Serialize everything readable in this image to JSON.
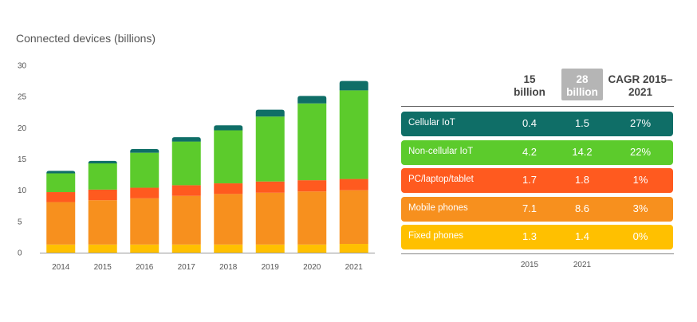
{
  "chart_data": [
    {
      "type": "bar",
      "stacked": true,
      "title": "Connected devices (billions)",
      "categories": [
        "2014",
        "2015",
        "2016",
        "2017",
        "2018",
        "2019",
        "2020",
        "2021"
      ],
      "ylim": [
        0,
        30
      ],
      "yticks": [
        0,
        5,
        10,
        15,
        20,
        25,
        30
      ],
      "grid": false,
      "series": [
        {
          "name": "Fixed phones",
          "color": "#ffc000",
          "values": [
            1.3,
            1.3,
            1.3,
            1.3,
            1.3,
            1.3,
            1.3,
            1.4
          ]
        },
        {
          "name": "Mobile phones",
          "color": "#f7901e",
          "values": [
            6.8,
            7.1,
            7.4,
            7.8,
            8.1,
            8.3,
            8.5,
            8.6
          ]
        },
        {
          "name": "PC/laptop/tablet",
          "color": "#ff5a1f",
          "values": [
            1.6,
            1.7,
            1.7,
            1.7,
            1.7,
            1.8,
            1.8,
            1.8
          ]
        },
        {
          "name": "Non-cellular IoT",
          "color": "#5ccb2c",
          "values": [
            3.0,
            4.2,
            5.6,
            7.0,
            8.5,
            10.4,
            12.3,
            14.2
          ]
        },
        {
          "name": "Cellular IoT",
          "color": "#0f6e67",
          "values": [
            0.4,
            0.4,
            0.6,
            0.7,
            0.8,
            1.1,
            1.2,
            1.5
          ]
        }
      ]
    },
    {
      "type": "table",
      "headers": {
        "c1": "15 billion",
        "c2": "28 billion",
        "c3": "CAGR 2015–2021"
      },
      "rows": [
        {
          "label": "Cellular IoT",
          "v2015": "0.4",
          "v2021": "1.5",
          "cagr": "27%",
          "color": "#0f6e67"
        },
        {
          "label": "Non-cellular IoT",
          "v2015": "4.2",
          "v2021": "14.2",
          "cagr": "22%",
          "color": "#5ccb2c"
        },
        {
          "label": "PC/laptop/tablet",
          "v2015": "1.7",
          "v2021": "1.8",
          "cagr": "1%",
          "color": "#ff5a1f"
        },
        {
          "label": "Mobile phones",
          "v2015": "7.1",
          "v2021": "8.6",
          "cagr": "3%",
          "color": "#f7901e"
        },
        {
          "label": "Fixed phones",
          "v2015": "1.3",
          "v2021": "1.4",
          "cagr": "0%",
          "color": "#ffc000"
        }
      ],
      "footer": {
        "f1": "2015",
        "f2": "2021"
      }
    }
  ]
}
